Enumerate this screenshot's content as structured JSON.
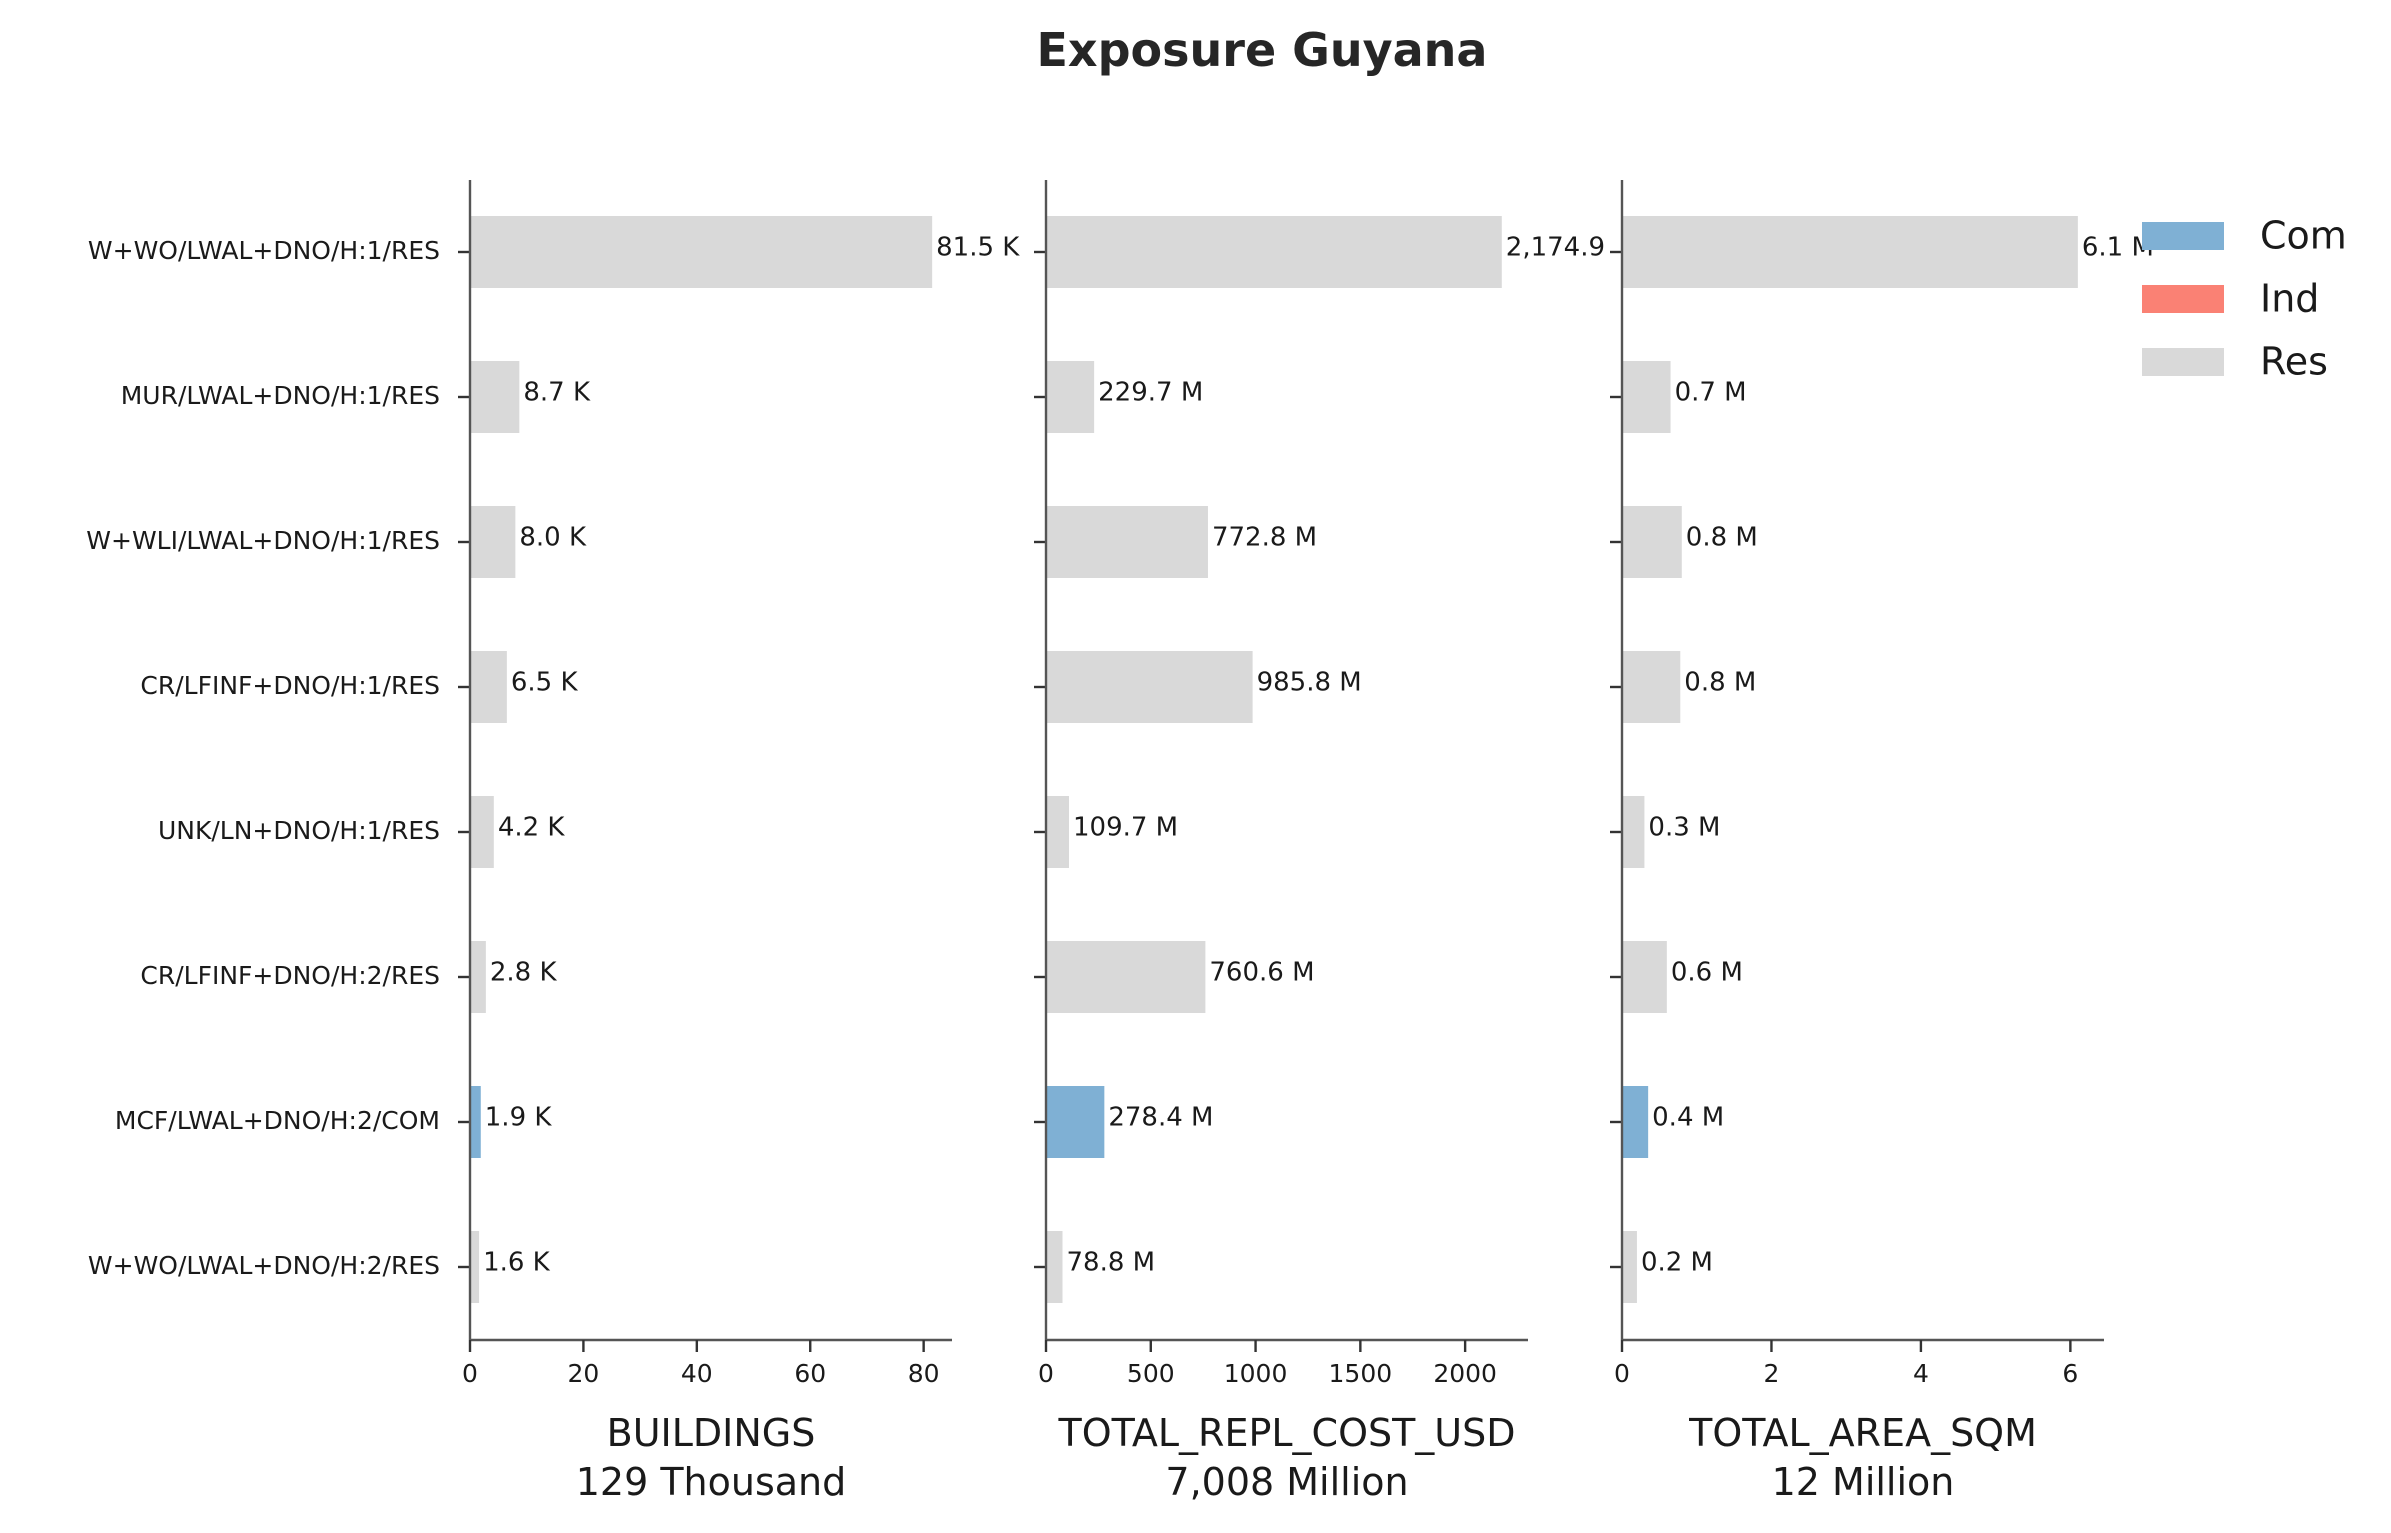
{
  "chart_data": {
    "type": "bar",
    "orientation": "horizontal",
    "title": "Exposure Guyana",
    "categories": [
      "W+WO/LWAL+DNO/H:1/RES",
      "MUR/LWAL+DNO/H:1/RES",
      "W+WLI/LWAL+DNO/H:1/RES",
      "CR/LFINF+DNO/H:1/RES",
      "UNK/LN+DNO/H:1/RES",
      "CR/LFINF+DNO/H:2/RES",
      "MCF/LWAL+DNO/H:2/COM",
      "W+WO/LWAL+DNO/H:2/RES"
    ],
    "occupancy": [
      "Res",
      "Res",
      "Res",
      "Res",
      "Res",
      "Res",
      "Com",
      "Res"
    ],
    "colors": {
      "Com": "#7fb0d4",
      "Ind": "#fa8174",
      "Res": "#d9d9d9"
    },
    "legend": {
      "position": "top-right",
      "entries": [
        "Com",
        "Ind",
        "Res"
      ]
    },
    "grid": false,
    "panels": [
      {
        "metric": "BUILDINGS",
        "total_label": "129 Thousand",
        "unit": "thousand",
        "xlim": [
          0,
          85
        ],
        "xticks": [
          0,
          20,
          40,
          60,
          80
        ],
        "values": [
          81.5,
          8.7,
          8.0,
          6.5,
          4.2,
          2.8,
          1.9,
          1.6
        ],
        "value_labels": [
          "81.5 K",
          "8.7 K",
          "8.0 K",
          "6.5 K",
          "4.2 K",
          "2.8 K",
          "1.9 K",
          "1.6 K"
        ]
      },
      {
        "metric": "TOTAL_REPL_COST_USD",
        "total_label": "7,008 Million",
        "unit": "million USD",
        "xlim": [
          0,
          2300
        ],
        "xticks": [
          0,
          500,
          1000,
          1500,
          2000
        ],
        "values": [
          2174.9,
          229.7,
          772.8,
          985.8,
          109.7,
          760.6,
          278.4,
          78.8
        ],
        "value_labels": [
          "2,174.9",
          "229.7 M",
          "772.8 M",
          "985.8 M",
          "109.7 M",
          "760.6 M",
          "278.4 M",
          "78.8 M"
        ]
      },
      {
        "metric": "TOTAL_AREA_SQM",
        "total_label": "12 Million",
        "unit": "million sqm",
        "xlim": [
          0,
          6.45
        ],
        "xticks": [
          0,
          2,
          4,
          6
        ],
        "values": [
          6.1,
          0.65,
          0.8,
          0.78,
          0.3,
          0.6,
          0.35,
          0.2
        ],
        "value_labels": [
          "6.1 M",
          "0.7 M",
          "0.8 M",
          "0.8 M",
          "0.3 M",
          "0.6 M",
          "0.4 M",
          "0.2 M"
        ]
      }
    ]
  }
}
